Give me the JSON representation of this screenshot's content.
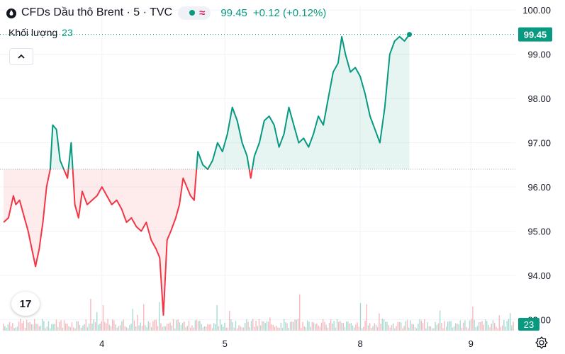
{
  "header": {
    "title": "CFDs Dầu thô Brent · 5 · TVC",
    "price": "99.45",
    "change": "+0.12 (+0.12%)"
  },
  "volume": {
    "label": "Khối lượng",
    "value": "23"
  },
  "colors": {
    "up": "#089981",
    "down": "#f23645",
    "grid": "#f0f3fa",
    "axis_text": "#131722"
  },
  "icons": {
    "collapse": "chevron-up-icon",
    "logo": "tradingview-logo-icon",
    "settings": "gear-icon"
  },
  "logo_text": "17",
  "chart_data": {
    "type": "area",
    "title": "CFDs Dầu thô Brent · 5 · TVC",
    "xlabel": "",
    "ylabel": "",
    "ylim": [
      92.75,
      100.1
    ],
    "baseline": 96.4,
    "last_price": 99.45,
    "last_price_label": "99.45",
    "volume_label": "23",
    "y_ticks": [
      {
        "v": 93,
        "label": "93.00"
      },
      {
        "v": 94,
        "label": "94.00"
      },
      {
        "v": 95,
        "label": "95.00"
      },
      {
        "v": 96,
        "label": "96.00"
      },
      {
        "v": 97,
        "label": "97.00"
      },
      {
        "v": 98,
        "label": "98.00"
      },
      {
        "v": 99,
        "label": "99.00"
      },
      {
        "v": 100,
        "label": "100.00"
      }
    ],
    "x_ticks": [
      {
        "t": 1.0,
        "label": "4"
      },
      {
        "t": 2.0,
        "label": "5"
      },
      {
        "t": 3.1,
        "label": "8"
      },
      {
        "t": 4.0,
        "label": "9"
      }
    ],
    "x_range": [
      0.2,
      4.35
    ],
    "series": [
      {
        "values": [
          [
            0.2,
            95.2
          ],
          [
            0.24,
            95.3
          ],
          [
            0.28,
            95.8
          ],
          [
            0.3,
            95.6
          ],
          [
            0.33,
            95.7
          ],
          [
            0.37,
            95.3
          ],
          [
            0.4,
            95.0
          ],
          [
            0.43,
            94.6
          ],
          [
            0.46,
            94.2
          ],
          [
            0.49,
            94.6
          ],
          [
            0.52,
            95.2
          ],
          [
            0.55,
            96.0
          ],
          [
            0.58,
            96.4
          ],
          [
            0.6,
            97.4
          ],
          [
            0.63,
            97.3
          ],
          [
            0.66,
            96.6
          ],
          [
            0.69,
            96.4
          ],
          [
            0.72,
            96.2
          ],
          [
            0.75,
            97.0
          ],
          [
            0.78,
            95.6
          ],
          [
            0.81,
            95.3
          ],
          [
            0.84,
            95.9
          ],
          [
            0.88,
            95.6
          ],
          [
            0.92,
            95.7
          ],
          [
            0.96,
            95.8
          ],
          [
            1.0,
            96.0
          ],
          [
            1.04,
            95.8
          ],
          [
            1.08,
            95.6
          ],
          [
            1.12,
            95.7
          ],
          [
            1.16,
            95.5
          ],
          [
            1.2,
            95.2
          ],
          [
            1.24,
            95.3
          ],
          [
            1.28,
            95.1
          ],
          [
            1.32,
            95.0
          ],
          [
            1.36,
            95.2
          ],
          [
            1.4,
            94.8
          ],
          [
            1.44,
            94.6
          ],
          [
            1.47,
            94.4
          ],
          [
            1.5,
            93.1
          ],
          [
            1.53,
            94.8
          ],
          [
            1.56,
            95.0
          ],
          [
            1.6,
            95.3
          ],
          [
            1.63,
            95.6
          ],
          [
            1.66,
            96.2
          ],
          [
            1.69,
            96.0
          ],
          [
            1.72,
            95.8
          ],
          [
            1.75,
            95.7
          ],
          [
            1.78,
            96.8
          ],
          [
            1.82,
            96.5
          ],
          [
            1.86,
            96.4
          ],
          [
            1.9,
            96.6
          ],
          [
            1.94,
            97.0
          ],
          [
            1.98,
            96.8
          ],
          [
            2.02,
            97.2
          ],
          [
            2.06,
            97.8
          ],
          [
            2.1,
            97.5
          ],
          [
            2.14,
            97.0
          ],
          [
            2.18,
            96.7
          ],
          [
            2.21,
            96.2
          ],
          [
            2.24,
            96.7
          ],
          [
            2.28,
            97.0
          ],
          [
            2.32,
            97.5
          ],
          [
            2.36,
            97.6
          ],
          [
            2.4,
            97.4
          ],
          [
            2.44,
            96.9
          ],
          [
            2.48,
            97.2
          ],
          [
            2.52,
            97.8
          ],
          [
            2.56,
            97.4
          ],
          [
            2.6,
            97.0
          ],
          [
            2.64,
            97.1
          ],
          [
            2.68,
            96.9
          ],
          [
            2.72,
            97.2
          ],
          [
            2.76,
            97.6
          ],
          [
            2.8,
            97.4
          ],
          [
            2.84,
            98.0
          ],
          [
            2.88,
            98.6
          ],
          [
            2.92,
            98.8
          ],
          [
            2.95,
            99.4
          ],
          [
            2.98,
            99.0
          ],
          [
            3.02,
            98.6
          ],
          [
            3.06,
            98.7
          ],
          [
            3.1,
            98.5
          ],
          [
            3.14,
            98.1
          ],
          [
            3.18,
            97.6
          ],
          [
            3.22,
            97.3
          ],
          [
            3.26,
            97.0
          ],
          [
            3.3,
            97.8
          ],
          [
            3.34,
            99.0
          ],
          [
            3.38,
            99.3
          ],
          [
            3.42,
            99.4
          ],
          [
            3.46,
            99.3
          ],
          [
            3.5,
            99.45
          ]
        ]
      }
    ]
  }
}
